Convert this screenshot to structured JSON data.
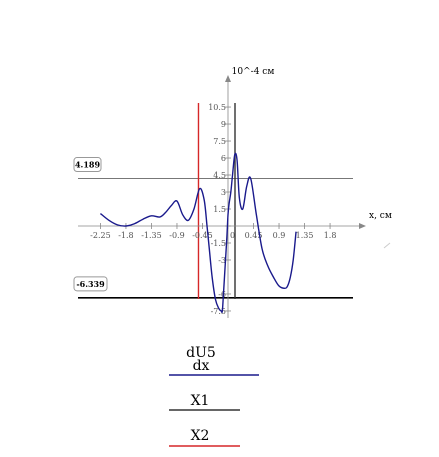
{
  "chart_data": {
    "type": "line",
    "title": "",
    "xlabel": "x, см",
    "ylabel": "10^-4 см",
    "xlim": [
      -2.5,
      2.0
    ],
    "ylim": [
      -8.0,
      11.0
    ],
    "x_ticks": [
      "-2.25",
      "-1.8",
      "-1.35",
      "-0.9",
      "-0.45",
      "0",
      "0.45",
      "0.9",
      "1.35",
      "1.8"
    ],
    "y_ticks": [
      "10.5",
      "9",
      "7.5",
      "6",
      "4.5",
      "3",
      "1.5",
      "0",
      "-1.5",
      "-3",
      "-6",
      "-7.5"
    ],
    "grid": false,
    "series": [
      {
        "name": "dU5/dx",
        "color": "#1a1a8c",
        "x": [
          -2.25,
          -2.1,
          -1.95,
          -1.8,
          -1.65,
          -1.5,
          -1.35,
          -1.2,
          -1.1,
          -1.0,
          -0.9,
          -0.8,
          -0.7,
          -0.6,
          -0.5,
          -0.42,
          -0.37,
          -0.33,
          -0.28,
          -0.22,
          -0.16,
          -0.12,
          -0.1,
          -0.08,
          -0.05,
          -0.02,
          0.0,
          0.02,
          0.05,
          0.08,
          0.12,
          0.16,
          0.2,
          0.26,
          0.33,
          0.4,
          0.5,
          0.6,
          0.7,
          0.8,
          0.9,
          1.0,
          1.05,
          1.1,
          1.15,
          1.2
        ],
        "y": [
          1.1,
          0.5,
          0.1,
          0.0,
          0.2,
          0.6,
          0.9,
          0.8,
          1.2,
          1.8,
          2.2,
          1.0,
          0.5,
          1.5,
          3.3,
          2.3,
          0.0,
          -2.0,
          -4.5,
          -6.5,
          -7.3,
          -7.5,
          -7.5,
          -6.0,
          -3.5,
          -1.0,
          1.0,
          2.0,
          3.0,
          4.5,
          6.3,
          5.8,
          2.5,
          1.5,
          3.5,
          4.2,
          1.0,
          -2.0,
          -3.5,
          -4.5,
          -5.3,
          -5.5,
          -5.3,
          -4.5,
          -3.0,
          -0.5
        ]
      }
    ],
    "vertical_markers": [
      {
        "name": "X1",
        "x": 0.0,
        "color": "#333333"
      },
      {
        "name": "X2",
        "x": -0.45,
        "color": "#d62728"
      }
    ],
    "horizontal_markers": [
      {
        "value": 4.189,
        "label": "4.189",
        "color": "#777777"
      },
      {
        "value": -6.339,
        "label": "-6.339",
        "color": "#000000"
      }
    ]
  },
  "legend": {
    "series_numerator": "dU5",
    "series_denominator": "dx",
    "x1_label": "X1",
    "x2_label": "X2"
  }
}
